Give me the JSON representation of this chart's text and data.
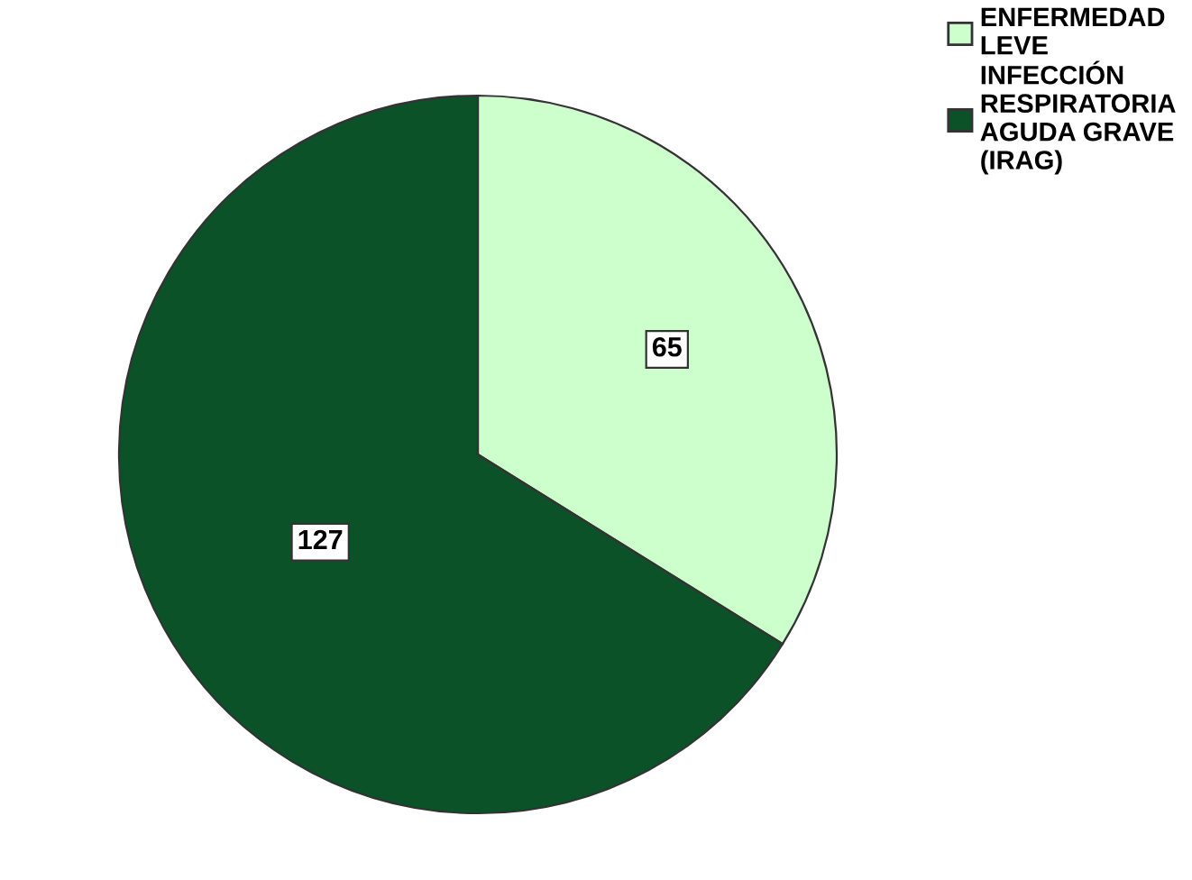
{
  "chart_data": {
    "type": "pie",
    "categories": [
      "ENFERMEDAD\nLEVE",
      "INFECCIÓN\nRESPIRATORIA\nAGUDA GRAVE\n(IRAG)"
    ],
    "values": [
      65,
      127
    ],
    "colors": [
      "#ccffcc",
      "#0b5229"
    ],
    "data_labels": true,
    "legend": "top right"
  }
}
